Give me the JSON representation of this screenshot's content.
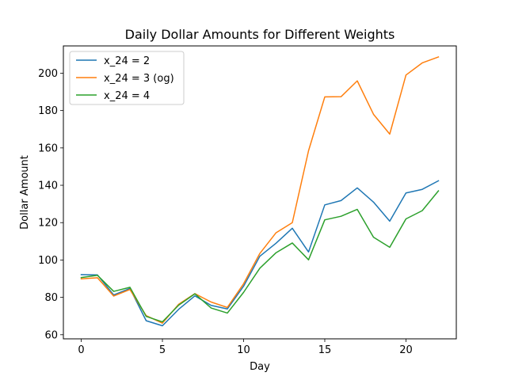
{
  "chart_data": {
    "type": "line",
    "title": "Daily Dollar Amounts for Different Weights",
    "xlabel": "Day",
    "ylabel": "Dollar Amount",
    "xlim": [
      -1.1,
      23.1
    ],
    "ylim": [
      57.8,
      214.6
    ],
    "xticks": [
      0,
      5,
      10,
      15,
      20
    ],
    "yticks": [
      60,
      80,
      100,
      120,
      140,
      160,
      180,
      200
    ],
    "grid": false,
    "legend_position": "top-left",
    "x": [
      0,
      1,
      2,
      3,
      4,
      5,
      6,
      7,
      8,
      9,
      10,
      11,
      12,
      13,
      14,
      15,
      16,
      17,
      18,
      19,
      20,
      21,
      22
    ],
    "series": [
      {
        "name": "x_24 = 2",
        "color": "#1f77b4",
        "values": [
          92.2,
          92.0,
          81.3,
          84.8,
          67.5,
          64.8,
          73.6,
          80.8,
          75.7,
          73.8,
          86.0,
          102.0,
          109.0,
          117.0,
          104.3,
          129.5,
          131.8,
          138.6,
          131.0,
          120.8,
          135.9,
          137.8,
          142.4
        ]
      },
      {
        "name": "x_24 = 3 (og)",
        "color": "#ff7f0e",
        "values": [
          89.9,
          90.5,
          80.7,
          84.2,
          70.2,
          66.2,
          76.3,
          82.0,
          77.5,
          74.6,
          87.3,
          103.5,
          114.6,
          120.0,
          158.5,
          187.3,
          187.4,
          195.9,
          178.0,
          167.4,
          199.0,
          205.5,
          208.7
        ]
      },
      {
        "name": "x_24 = 4",
        "color": "#2ca02c",
        "values": [
          90.6,
          91.8,
          83.2,
          85.4,
          69.8,
          66.9,
          75.8,
          81.9,
          74.3,
          71.6,
          82.7,
          95.6,
          103.9,
          109.1,
          100.1,
          121.5,
          123.4,
          127.1,
          112.2,
          106.8,
          122.0,
          126.4,
          137.0
        ]
      }
    ]
  }
}
